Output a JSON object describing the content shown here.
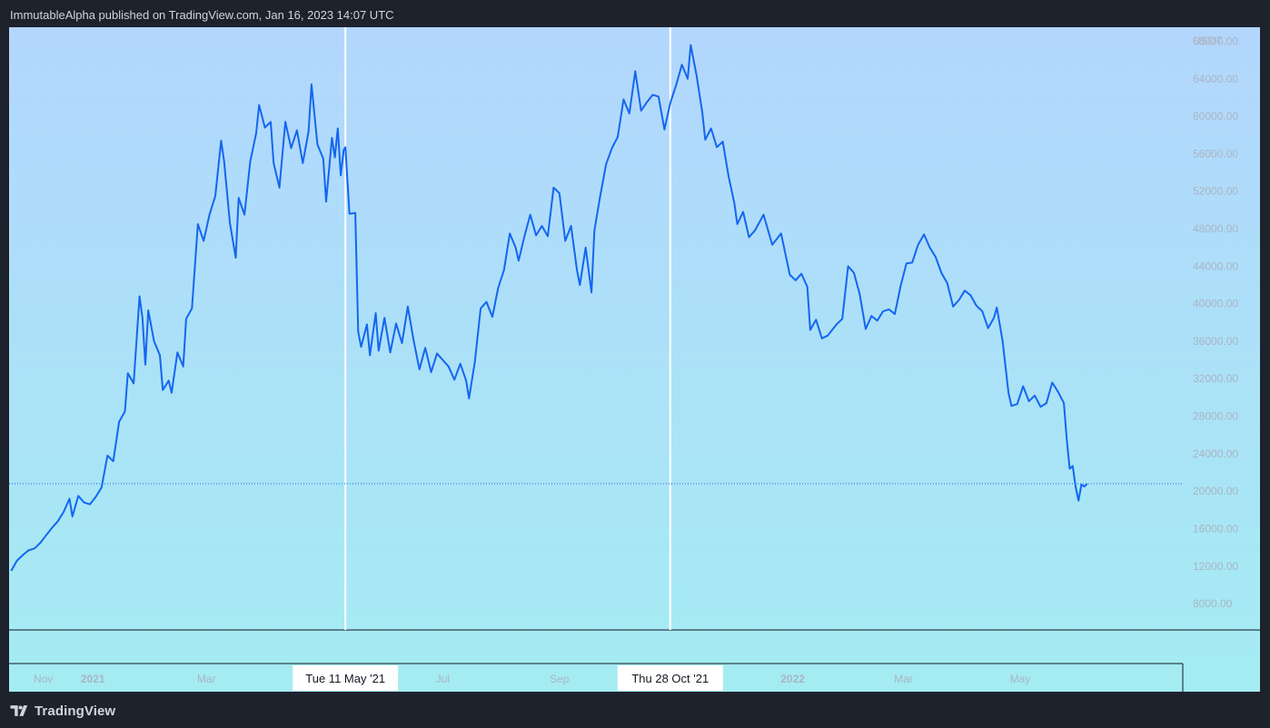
{
  "header": {
    "text": "ImmutableAlpha published on TradingView.com, Jan 16, 2023 14:07 UTC"
  },
  "footer": {
    "brand": "TradingView",
    "logo_icon": "tradingview-logo-icon"
  },
  "colors": {
    "line": "#1466f0",
    "label_text": "#aab4c3",
    "marker": "#ffffff",
    "divider": "#131722"
  },
  "chart_data": {
    "type": "line",
    "title": "",
    "ylabel": "USDT",
    "ylim": [
      5200,
      69500
    ],
    "y_ticks": [
      8000,
      12000,
      16000,
      20000,
      24000,
      28000,
      32000,
      36000,
      40000,
      44000,
      48000,
      52000,
      56000,
      60000,
      64000,
      68000
    ],
    "x_tick_labels": [
      {
        "label": "Nov",
        "x": 0.15
      },
      {
        "label": "2021",
        "x": 1.0,
        "bold": true
      },
      {
        "label": "Mar",
        "x": 2.95
      },
      {
        "label": "Jul",
        "x": 7.0
      },
      {
        "label": "Sep",
        "x": 9.0
      },
      {
        "label": "2022",
        "x": 13.0,
        "bold": true
      },
      {
        "label": "Mar",
        "x": 14.9
      },
      {
        "label": "May",
        "x": 16.9
      }
    ],
    "markers": [
      {
        "label": "Tue 11 May '21",
        "x": 5.33
      },
      {
        "label": "Thu 28 Oct '21",
        "x": 10.9
      }
    ],
    "last_value": 20800,
    "x_unit": "months since Nov 2020",
    "points": [
      [
        -0.4,
        11500
      ],
      [
        -0.3,
        12600
      ],
      [
        -0.2,
        13200
      ],
      [
        -0.1,
        13700
      ],
      [
        0.0,
        13900
      ],
      [
        0.1,
        14500
      ],
      [
        0.2,
        15300
      ],
      [
        0.3,
        16100
      ],
      [
        0.4,
        16800
      ],
      [
        0.5,
        17800
      ],
      [
        0.6,
        19200
      ],
      [
        0.65,
        17300
      ],
      [
        0.75,
        19500
      ],
      [
        0.85,
        18800
      ],
      [
        0.95,
        18600
      ],
      [
        1.05,
        19400
      ],
      [
        1.15,
        20400
      ],
      [
        1.25,
        23800
      ],
      [
        1.35,
        23200
      ],
      [
        1.45,
        27400
      ],
      [
        1.55,
        28500
      ],
      [
        1.6,
        32600
      ],
      [
        1.7,
        31500
      ],
      [
        1.8,
        40800
      ],
      [
        1.85,
        38500
      ],
      [
        1.9,
        33500
      ],
      [
        1.95,
        39300
      ],
      [
        2.05,
        36000
      ],
      [
        2.15,
        34500
      ],
      [
        2.2,
        30800
      ],
      [
        2.3,
        31800
      ],
      [
        2.35,
        30500
      ],
      [
        2.45,
        34800
      ],
      [
        2.55,
        33300
      ],
      [
        2.6,
        38400
      ],
      [
        2.7,
        39500
      ],
      [
        2.8,
        48500
      ],
      [
        2.9,
        46700
      ],
      [
        3.0,
        49500
      ],
      [
        3.1,
        51500
      ],
      [
        3.2,
        57400
      ],
      [
        3.25,
        55200
      ],
      [
        3.35,
        48600
      ],
      [
        3.45,
        44900
      ],
      [
        3.5,
        51300
      ],
      [
        3.6,
        49500
      ],
      [
        3.7,
        55200
      ],
      [
        3.8,
        58200
      ],
      [
        3.85,
        61200
      ],
      [
        3.95,
        58800
      ],
      [
        4.05,
        59400
      ],
      [
        4.1,
        55000
      ],
      [
        4.2,
        52400
      ],
      [
        4.3,
        59400
      ],
      [
        4.4,
        56600
      ],
      [
        4.5,
        58500
      ],
      [
        4.6,
        55000
      ],
      [
        4.7,
        58400
      ],
      [
        4.75,
        63400
      ],
      [
        4.85,
        57000
      ],
      [
        4.95,
        55500
      ],
      [
        5.0,
        50900
      ],
      [
        5.1,
        57700
      ],
      [
        5.15,
        55600
      ],
      [
        5.2,
        58700
      ],
      [
        5.25,
        53700
      ],
      [
        5.3,
        56400
      ],
      [
        5.33,
        56700
      ],
      [
        5.4,
        49600
      ],
      [
        5.5,
        49700
      ],
      [
        5.55,
        37000
      ],
      [
        5.6,
        35400
      ],
      [
        5.7,
        37800
      ],
      [
        5.75,
        34500
      ],
      [
        5.85,
        39000
      ],
      [
        5.9,
        35000
      ],
      [
        6.0,
        38500
      ],
      [
        6.1,
        34800
      ],
      [
        6.2,
        37900
      ],
      [
        6.3,
        35800
      ],
      [
        6.4,
        39700
      ],
      [
        6.5,
        36100
      ],
      [
        6.6,
        33000
      ],
      [
        6.7,
        35300
      ],
      [
        6.8,
        32700
      ],
      [
        6.9,
        34700
      ],
      [
        7.0,
        34000
      ],
      [
        7.1,
        33300
      ],
      [
        7.2,
        31900
      ],
      [
        7.3,
        33600
      ],
      [
        7.4,
        31800
      ],
      [
        7.45,
        29900
      ],
      [
        7.55,
        33800
      ],
      [
        7.65,
        39500
      ],
      [
        7.75,
        40200
      ],
      [
        7.85,
        38600
      ],
      [
        7.95,
        41700
      ],
      [
        8.05,
        43600
      ],
      [
        8.15,
        47500
      ],
      [
        8.25,
        46000
      ],
      [
        8.3,
        44600
      ],
      [
        8.4,
        47200
      ],
      [
        8.5,
        49500
      ],
      [
        8.6,
        47300
      ],
      [
        8.7,
        48300
      ],
      [
        8.8,
        47200
      ],
      [
        8.9,
        52400
      ],
      [
        9.0,
        51800
      ],
      [
        9.1,
        46700
      ],
      [
        9.2,
        48300
      ],
      [
        9.3,
        43600
      ],
      [
        9.35,
        42000
      ],
      [
        9.45,
        46000
      ],
      [
        9.55,
        41200
      ],
      [
        9.6,
        47800
      ],
      [
        9.7,
        51500
      ],
      [
        9.8,
        54900
      ],
      [
        9.9,
        56600
      ],
      [
        10.0,
        57800
      ],
      [
        10.1,
        61800
      ],
      [
        10.2,
        60300
      ],
      [
        10.3,
        64800
      ],
      [
        10.4,
        60600
      ],
      [
        10.5,
        61500
      ],
      [
        10.6,
        62300
      ],
      [
        10.7,
        62100
      ],
      [
        10.8,
        58600
      ],
      [
        10.9,
        61400
      ],
      [
        11.0,
        63300
      ],
      [
        11.1,
        65500
      ],
      [
        11.2,
        64000
      ],
      [
        11.25,
        67600
      ],
      [
        11.35,
        64400
      ],
      [
        11.45,
        60400
      ],
      [
        11.5,
        57500
      ],
      [
        11.6,
        58700
      ],
      [
        11.7,
        56700
      ],
      [
        11.8,
        57300
      ],
      [
        11.9,
        53600
      ],
      [
        12.0,
        50700
      ],
      [
        12.05,
        48500
      ],
      [
        12.15,
        49800
      ],
      [
        12.25,
        47100
      ],
      [
        12.35,
        47800
      ],
      [
        12.5,
        49500
      ],
      [
        12.65,
        46300
      ],
      [
        12.8,
        47500
      ],
      [
        12.95,
        43100
      ],
      [
        13.05,
        42500
      ],
      [
        13.15,
        43200
      ],
      [
        13.25,
        41800
      ],
      [
        13.3,
        37200
      ],
      [
        13.4,
        38300
      ],
      [
        13.5,
        36300
      ],
      [
        13.6,
        36600
      ],
      [
        13.75,
        37800
      ],
      [
        13.85,
        38400
      ],
      [
        13.95,
        44000
      ],
      [
        14.05,
        43300
      ],
      [
        14.15,
        41000
      ],
      [
        14.25,
        37300
      ],
      [
        14.35,
        38700
      ],
      [
        14.45,
        38200
      ],
      [
        14.55,
        39200
      ],
      [
        14.65,
        39400
      ],
      [
        14.75,
        38900
      ],
      [
        14.85,
        41900
      ],
      [
        14.95,
        44300
      ],
      [
        15.05,
        44400
      ],
      [
        15.15,
        46300
      ],
      [
        15.25,
        47400
      ],
      [
        15.35,
        46000
      ],
      [
        15.45,
        45000
      ],
      [
        15.55,
        43300
      ],
      [
        15.65,
        42200
      ],
      [
        15.75,
        39700
      ],
      [
        15.85,
        40400
      ],
      [
        15.95,
        41400
      ],
      [
        16.05,
        40900
      ],
      [
        16.15,
        39800
      ],
      [
        16.25,
        39200
      ],
      [
        16.35,
        37400
      ],
      [
        16.45,
        38500
      ],
      [
        16.5,
        39600
      ],
      [
        16.6,
        36000
      ],
      [
        16.7,
        30500
      ],
      [
        16.75,
        29100
      ],
      [
        16.85,
        29300
      ],
      [
        16.95,
        31200
      ],
      [
        17.05,
        29600
      ],
      [
        17.15,
        30200
      ],
      [
        17.25,
        29000
      ],
      [
        17.35,
        29400
      ],
      [
        17.45,
        31600
      ],
      [
        17.55,
        30600
      ],
      [
        17.65,
        29400
      ],
      [
        17.7,
        25500
      ],
      [
        17.75,
        22400
      ],
      [
        17.8,
        22700
      ],
      [
        17.85,
        20500
      ],
      [
        17.9,
        19000
      ],
      [
        17.95,
        20700
      ],
      [
        18.0,
        20500
      ],
      [
        18.05,
        20800
      ]
    ]
  }
}
